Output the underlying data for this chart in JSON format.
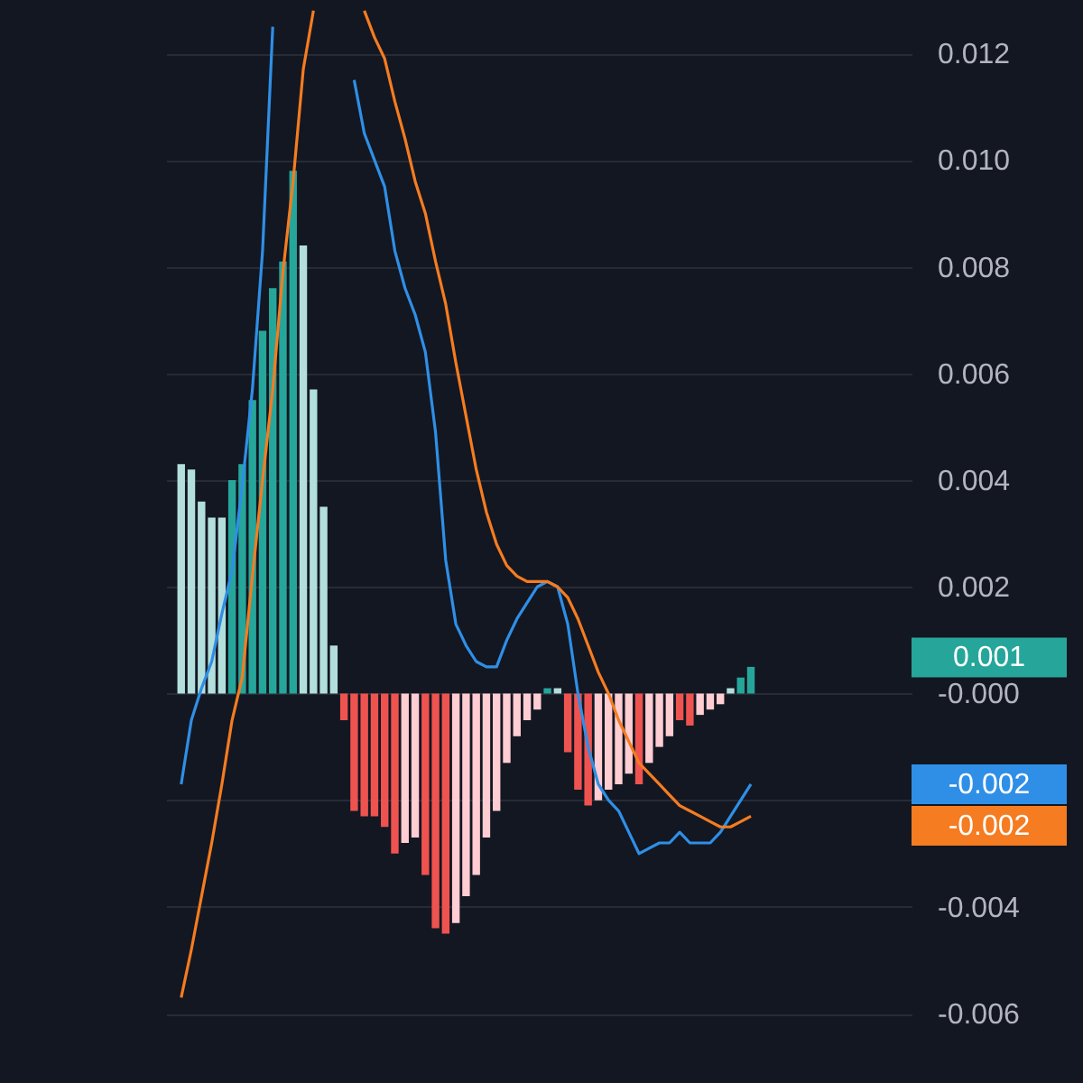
{
  "chart_data": {
    "type": "bar",
    "categories": [
      null,
      null,
      null,
      null,
      null,
      null,
      null,
      null,
      null,
      null,
      null,
      null,
      null,
      null,
      null,
      null,
      null,
      null,
      null,
      null,
      null,
      null,
      null,
      null,
      null,
      null,
      null,
      null,
      null,
      null,
      null,
      null,
      null,
      null,
      null,
      null,
      null,
      null,
      null,
      null,
      null,
      null,
      null,
      null,
      null,
      null,
      null,
      null,
      null,
      null,
      null,
      null,
      null,
      null,
      null,
      null,
      null
    ],
    "series": [
      {
        "color": "#26a69a",
        "colors": [
          "#b2dfdb",
          "#b2dfdb",
          "#b2dfdb",
          "#b2dfdb",
          "#b2dfdb",
          "#26a69a",
          "#26a69a",
          "#26a69a",
          "#26a69a",
          "#26a69a",
          "#26a69a",
          "#26a69a",
          "#b2dfdb",
          "#b2dfdb",
          "#b2dfdb",
          "#b2dfdb",
          "#ef5350",
          "#ef5350",
          "#ef5350",
          "#ef5350",
          "#ef5350",
          "#ef5350",
          "#ffcdd2",
          "#ffcdd2",
          "#ef5350",
          "#ef5350",
          "#ef5350",
          "#ffcdd2",
          "#ffcdd2",
          "#ffcdd2",
          "#ffcdd2",
          "#ffcdd2",
          "#ffcdd2",
          "#ffcdd2",
          "#ffcdd2",
          "#ffcdd2",
          "#26a69a",
          "#b2dfdb",
          "#ef5350",
          "#ef5350",
          "#ef5350",
          "#ffcdd2",
          "#ffcdd2",
          "#ffcdd2",
          "#ffcdd2",
          "#ef5350",
          "#ffcdd2",
          "#ffcdd2",
          "#ffcdd2",
          "#ef5350",
          "#ef5350",
          "#ffcdd2",
          "#ffcdd2",
          "#ffcdd2",
          "#b2dfdb",
          "#26a69a",
          "#26a69a"
        ],
        "values": [
          0.0043,
          0.0042,
          0.0036,
          0.0033,
          0.0033,
          0.004,
          0.0043,
          0.0055,
          0.0068,
          0.0076,
          0.0081,
          0.0098,
          0.0084,
          0.0057,
          0.0035,
          0.0009,
          -0.0005,
          -0.0022,
          -0.0023,
          -0.0023,
          -0.0025,
          -0.003,
          -0.0028,
          -0.0027,
          -0.0034,
          -0.0044,
          -0.0045,
          -0.0043,
          -0.0038,
          -0.0034,
          -0.0027,
          -0.0022,
          -0.0013,
          -0.0008,
          -0.0005,
          -0.0003,
          0.0001,
          0.0001,
          -0.0011,
          -0.0018,
          -0.0021,
          -0.002,
          -0.0018,
          -0.0017,
          -0.0015,
          -0.0017,
          -0.0013,
          -0.001,
          -0.0008,
          -0.0005,
          -0.0006,
          -0.0004,
          -0.0003,
          -0.0002,
          0.0001,
          0.0003,
          0.0005
        ]
      },
      {
        "type": "line",
        "color": "#2f8fe6",
        "values": [
          -0.0017,
          -0.0005,
          0.0001,
          0.0006,
          0.0015,
          0.0023,
          0.0039,
          0.0057,
          0.0083,
          0.0125,
          null,
          null,
          null,
          null,
          null,
          null,
          null,
          null,
          null,
          null,
          null,
          null,
          null,
          null,
          null,
          null,
          null,
          null,
          null,
          null,
          null,
          null,
          null,
          null,
          null,
          null,
          null,
          null,
          null,
          null,
          null,
          null,
          null,
          null,
          null,
          null,
          null,
          null,
          null,
          null,
          null,
          null,
          null,
          null,
          null,
          null,
          null
        ]
      },
      {
        "type": "line",
        "color": "#2f8fe6",
        "values": [
          null,
          null,
          null,
          null,
          null,
          null,
          null,
          null,
          null,
          null,
          null,
          null,
          null,
          null,
          null,
          null,
          null,
          0.0115,
          0.0105,
          0.01,
          0.0095,
          0.0083,
          0.0076,
          0.0071,
          0.0064,
          0.0049,
          0.0025,
          0.0013,
          0.0009,
          0.0006,
          0.0005,
          0.0005,
          0.001,
          0.0014,
          0.0017,
          0.002,
          0.0021,
          0.002,
          0.0013,
          0.0,
          -0.001,
          -0.0017,
          -0.002,
          -0.0022,
          -0.0026,
          -0.003,
          -0.0029,
          -0.0028,
          -0.0028,
          -0.0026,
          -0.0028,
          -0.0028,
          -0.0028,
          -0.0026,
          -0.0023,
          -0.002,
          -0.0017
        ]
      },
      {
        "type": "line",
        "color": "#f57c20",
        "values": [
          -0.0057,
          -0.0048,
          -0.0038,
          -0.0028,
          -0.0017,
          -0.0005,
          0.0003,
          0.0022,
          0.004,
          0.0057,
          0.0079,
          0.0096,
          0.0117,
          0.0128,
          null,
          null,
          null,
          null,
          null,
          null,
          null,
          null,
          null,
          null,
          null,
          null,
          null,
          null,
          null,
          null,
          null,
          null,
          null,
          null,
          null,
          null,
          null,
          null,
          null,
          null,
          null,
          null,
          null,
          null,
          null,
          null,
          null,
          null,
          null,
          null,
          null,
          null,
          null,
          null,
          null,
          null,
          null
        ]
      },
      {
        "type": "line",
        "color": "#f57c20",
        "values": [
          null,
          null,
          null,
          null,
          null,
          null,
          null,
          null,
          null,
          null,
          null,
          null,
          null,
          null,
          null,
          null,
          null,
          null,
          0.0128,
          0.0123,
          0.0119,
          0.0111,
          0.0104,
          0.0096,
          0.009,
          0.0081,
          0.0073,
          0.0062,
          0.0052,
          0.0042,
          0.0034,
          0.0028,
          0.0024,
          0.0022,
          0.0021,
          0.0021,
          0.0021,
          0.002,
          0.0018,
          0.0014,
          0.0009,
          0.0004,
          0.0,
          -0.0005,
          -0.0009,
          -0.0013,
          -0.0015,
          -0.0017,
          -0.0019,
          -0.0021,
          -0.0022,
          -0.0023,
          -0.0024,
          -0.0025,
          -0.0025,
          -0.0024,
          -0.0023
        ]
      }
    ],
    "ylim": [
      -0.0073,
      0.013
    ],
    "yticks": [
      {
        "value": -0.006,
        "label": "-0.006"
      },
      {
        "value": -0.004,
        "label": "-0.004"
      },
      {
        "value": -0.002,
        "label": null
      },
      {
        "value": 0,
        "label": "-0.000"
      },
      {
        "value": 0.002,
        "label": "0.002"
      },
      {
        "value": 0.004,
        "label": "0.004"
      },
      {
        "value": 0.006,
        "label": "0.006"
      },
      {
        "value": 0.008,
        "label": "0.008"
      },
      {
        "value": 0.01,
        "label": "0.010"
      },
      {
        "value": 0.012,
        "label": "0.012"
      }
    ],
    "annotations": [
      "0.001",
      "-0.002",
      "-0.002"
    ],
    "grid": "y",
    "tick_labels": "y"
  }
}
